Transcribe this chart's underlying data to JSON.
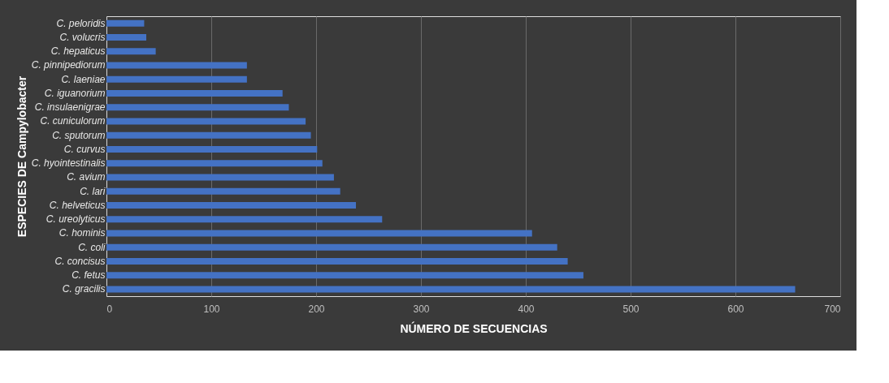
{
  "chart_data": {
    "type": "bar",
    "orientation": "horizontal",
    "xlabel": "NÚMERO DE SECUENCIAS",
    "ylabel": "ESPECIES DE Campylobacter",
    "categories": [
      "C. peloridis",
      "C. volucris",
      "C. hepaticus",
      "C. pinnipediorum",
      "C. laeniae",
      "C. iguanorium",
      "C. insulaenigrae",
      "C. cuniculorum",
      "C. sputorum",
      "C. curvus",
      "C. hyointestinalis",
      "C. avium",
      "C. lari",
      "C. helveticus",
      "C. ureolyticus",
      "C. hominis",
      "C. coli",
      "C. concisus",
      "C. fetus",
      "C. gracilis"
    ],
    "values": [
      36,
      38,
      47,
      134,
      134,
      168,
      174,
      190,
      195,
      201,
      206,
      217,
      223,
      238,
      263,
      406,
      430,
      440,
      455,
      657
    ],
    "color": "#4472c4",
    "xlim": [
      0,
      700
    ],
    "xticks": [
      0,
      100,
      200,
      300,
      400,
      500,
      600,
      700
    ],
    "grid": "x"
  }
}
